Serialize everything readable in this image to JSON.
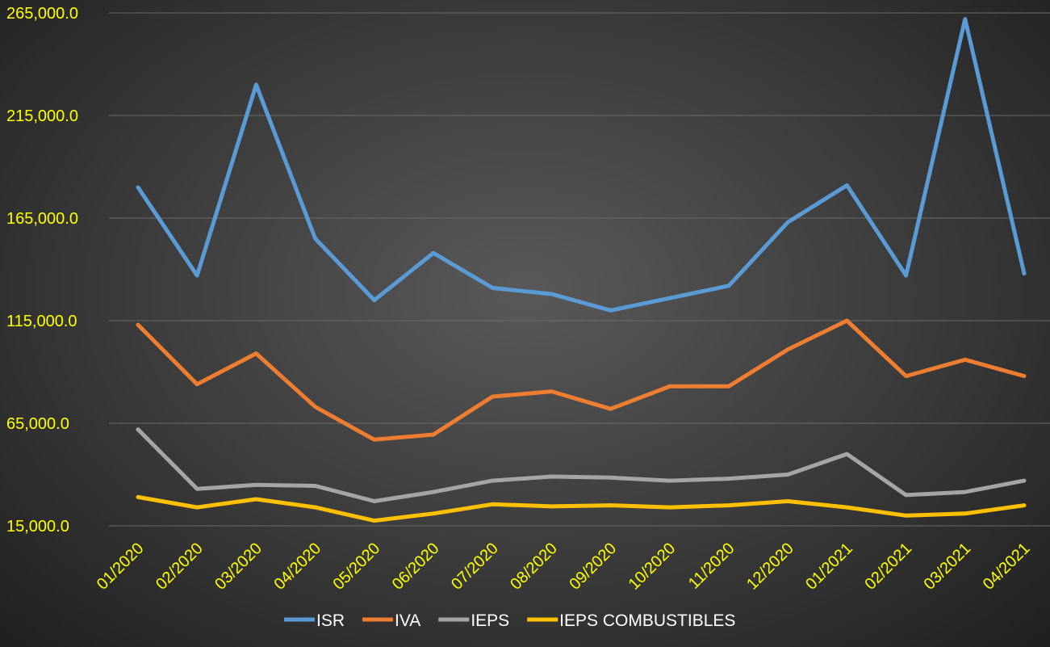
{
  "chart_data": {
    "type": "line",
    "categories": [
      "01/2020",
      "02/2020",
      "03/2020",
      "04/2020",
      "05/2020",
      "06/2020",
      "07/2020",
      "08/2020",
      "09/2020",
      "10/2020",
      "11/2020",
      "12/2020",
      "01/2021",
      "02/2021",
      "03/2021",
      "04/2021"
    ],
    "y_ticks": [
      "15,000.0",
      "65,000.0",
      "115,000.0",
      "165,000.0",
      "215,000.0",
      "265,000.0"
    ],
    "ylim": [
      15000,
      265000
    ],
    "grid": true,
    "legend_position": "bottom",
    "series": [
      {
        "name": "ISR",
        "color": "#5b9bd5",
        "values": [
          180000,
          137000,
          230000,
          155000,
          125000,
          148000,
          131000,
          128000,
          120000,
          126000,
          132000,
          163000,
          181000,
          137000,
          262000,
          138000
        ]
      },
      {
        "name": "IVA",
        "color": "#ed7d31",
        "values": [
          113000,
          84000,
          99000,
          73000,
          57000,
          59500,
          78000,
          80500,
          72000,
          83000,
          83000,
          101000,
          115000,
          88000,
          96000,
          88000
        ]
      },
      {
        "name": "IEPS",
        "color": "#a5a5a5",
        "values": [
          62000,
          33000,
          35000,
          34500,
          27000,
          31500,
          37000,
          39000,
          38500,
          37000,
          38000,
          40000,
          50000,
          30000,
          31500,
          37000
        ]
      },
      {
        "name": "IEPS COMBUSTIBLES",
        "color": "#ffc000",
        "values": [
          29000,
          24000,
          28000,
          24000,
          17500,
          21000,
          25500,
          24500,
          25000,
          24000,
          25000,
          27000,
          24000,
          20000,
          21000,
          25000
        ]
      }
    ]
  }
}
